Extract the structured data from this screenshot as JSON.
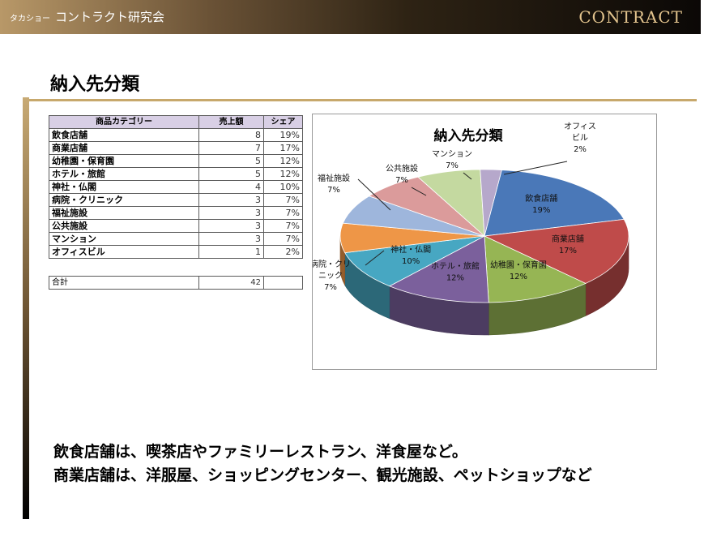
{
  "header": {
    "brand_small": "タカショー",
    "brand": "コントラクト研究会",
    "logo": "CONTRACT"
  },
  "page": {
    "title": "納入先分類"
  },
  "table": {
    "headers": [
      "商品カテゴリー",
      "売上額",
      "シェア"
    ],
    "rows": [
      {
        "category": "飲食店舗",
        "sales": "8",
        "share": "19%"
      },
      {
        "category": "商業店舗",
        "sales": "7",
        "share": "17%"
      },
      {
        "category": "幼稚園・保育園",
        "sales": "5",
        "share": "12%"
      },
      {
        "category": "ホテル・旅館",
        "sales": "5",
        "share": "12%"
      },
      {
        "category": "神社・仏閣",
        "sales": "4",
        "share": "10%"
      },
      {
        "category": "病院・クリニック",
        "sales": "3",
        "share": "7%"
      },
      {
        "category": "福祉施設",
        "sales": "3",
        "share": "7%"
      },
      {
        "category": "公共施設",
        "sales": "3",
        "share": "7%"
      },
      {
        "category": "マンション",
        "sales": "3",
        "share": "7%"
      },
      {
        "category": "オフィスビル",
        "sales": "1",
        "share": "2%"
      }
    ],
    "total_label": "合計",
    "total_value": "42"
  },
  "chart_data": {
    "type": "pie",
    "title": "納入先分類",
    "categories": [
      "飲食店舗",
      "商業店舗",
      "幼稚園・保育園",
      "ホテル・旅館",
      "神社・仏閣",
      "病院・クリニック",
      "福祉施設",
      "公共施設",
      "マンション",
      "オフィスビル"
    ],
    "values": [
      8,
      7,
      5,
      5,
      4,
      3,
      3,
      3,
      3,
      1
    ],
    "labels": [
      {
        "lines": [
          "飲食店舗"
        ],
        "pct": "19%"
      },
      {
        "lines": [
          "商業店舗"
        ],
        "pct": "17%"
      },
      {
        "lines": [
          "幼稚園・保育園"
        ],
        "pct": "12%"
      },
      {
        "lines": [
          "ホテル・旅館"
        ],
        "pct": "12%"
      },
      {
        "lines": [
          "神社・仏閣"
        ],
        "pct": "10%"
      },
      {
        "lines": [
          "病院・クリ",
          "ニック"
        ],
        "pct": "7%"
      },
      {
        "lines": [
          "福祉施設"
        ],
        "pct": "7%"
      },
      {
        "lines": [
          "公共施設"
        ],
        "pct": "7%"
      },
      {
        "lines": [
          "マンション"
        ],
        "pct": "7%"
      },
      {
        "lines": [
          "オフィス",
          "ビル"
        ],
        "pct": "2%"
      }
    ],
    "colors": [
      "#4a78b8",
      "#bf4b4a",
      "#96b554",
      "#7b609c",
      "#47a7c2",
      "#ee9647",
      "#9eb6dc",
      "#db9b9b",
      "#c4d9a0",
      "#b6a8cb"
    ]
  },
  "caption": {
    "line1": "飲食店舗は、喫茶店やファミリーレストラン、洋食屋など。",
    "line2": "商業店舗は、洋服屋、ショッピングセンター、観光施設、ペットショップなど"
  }
}
